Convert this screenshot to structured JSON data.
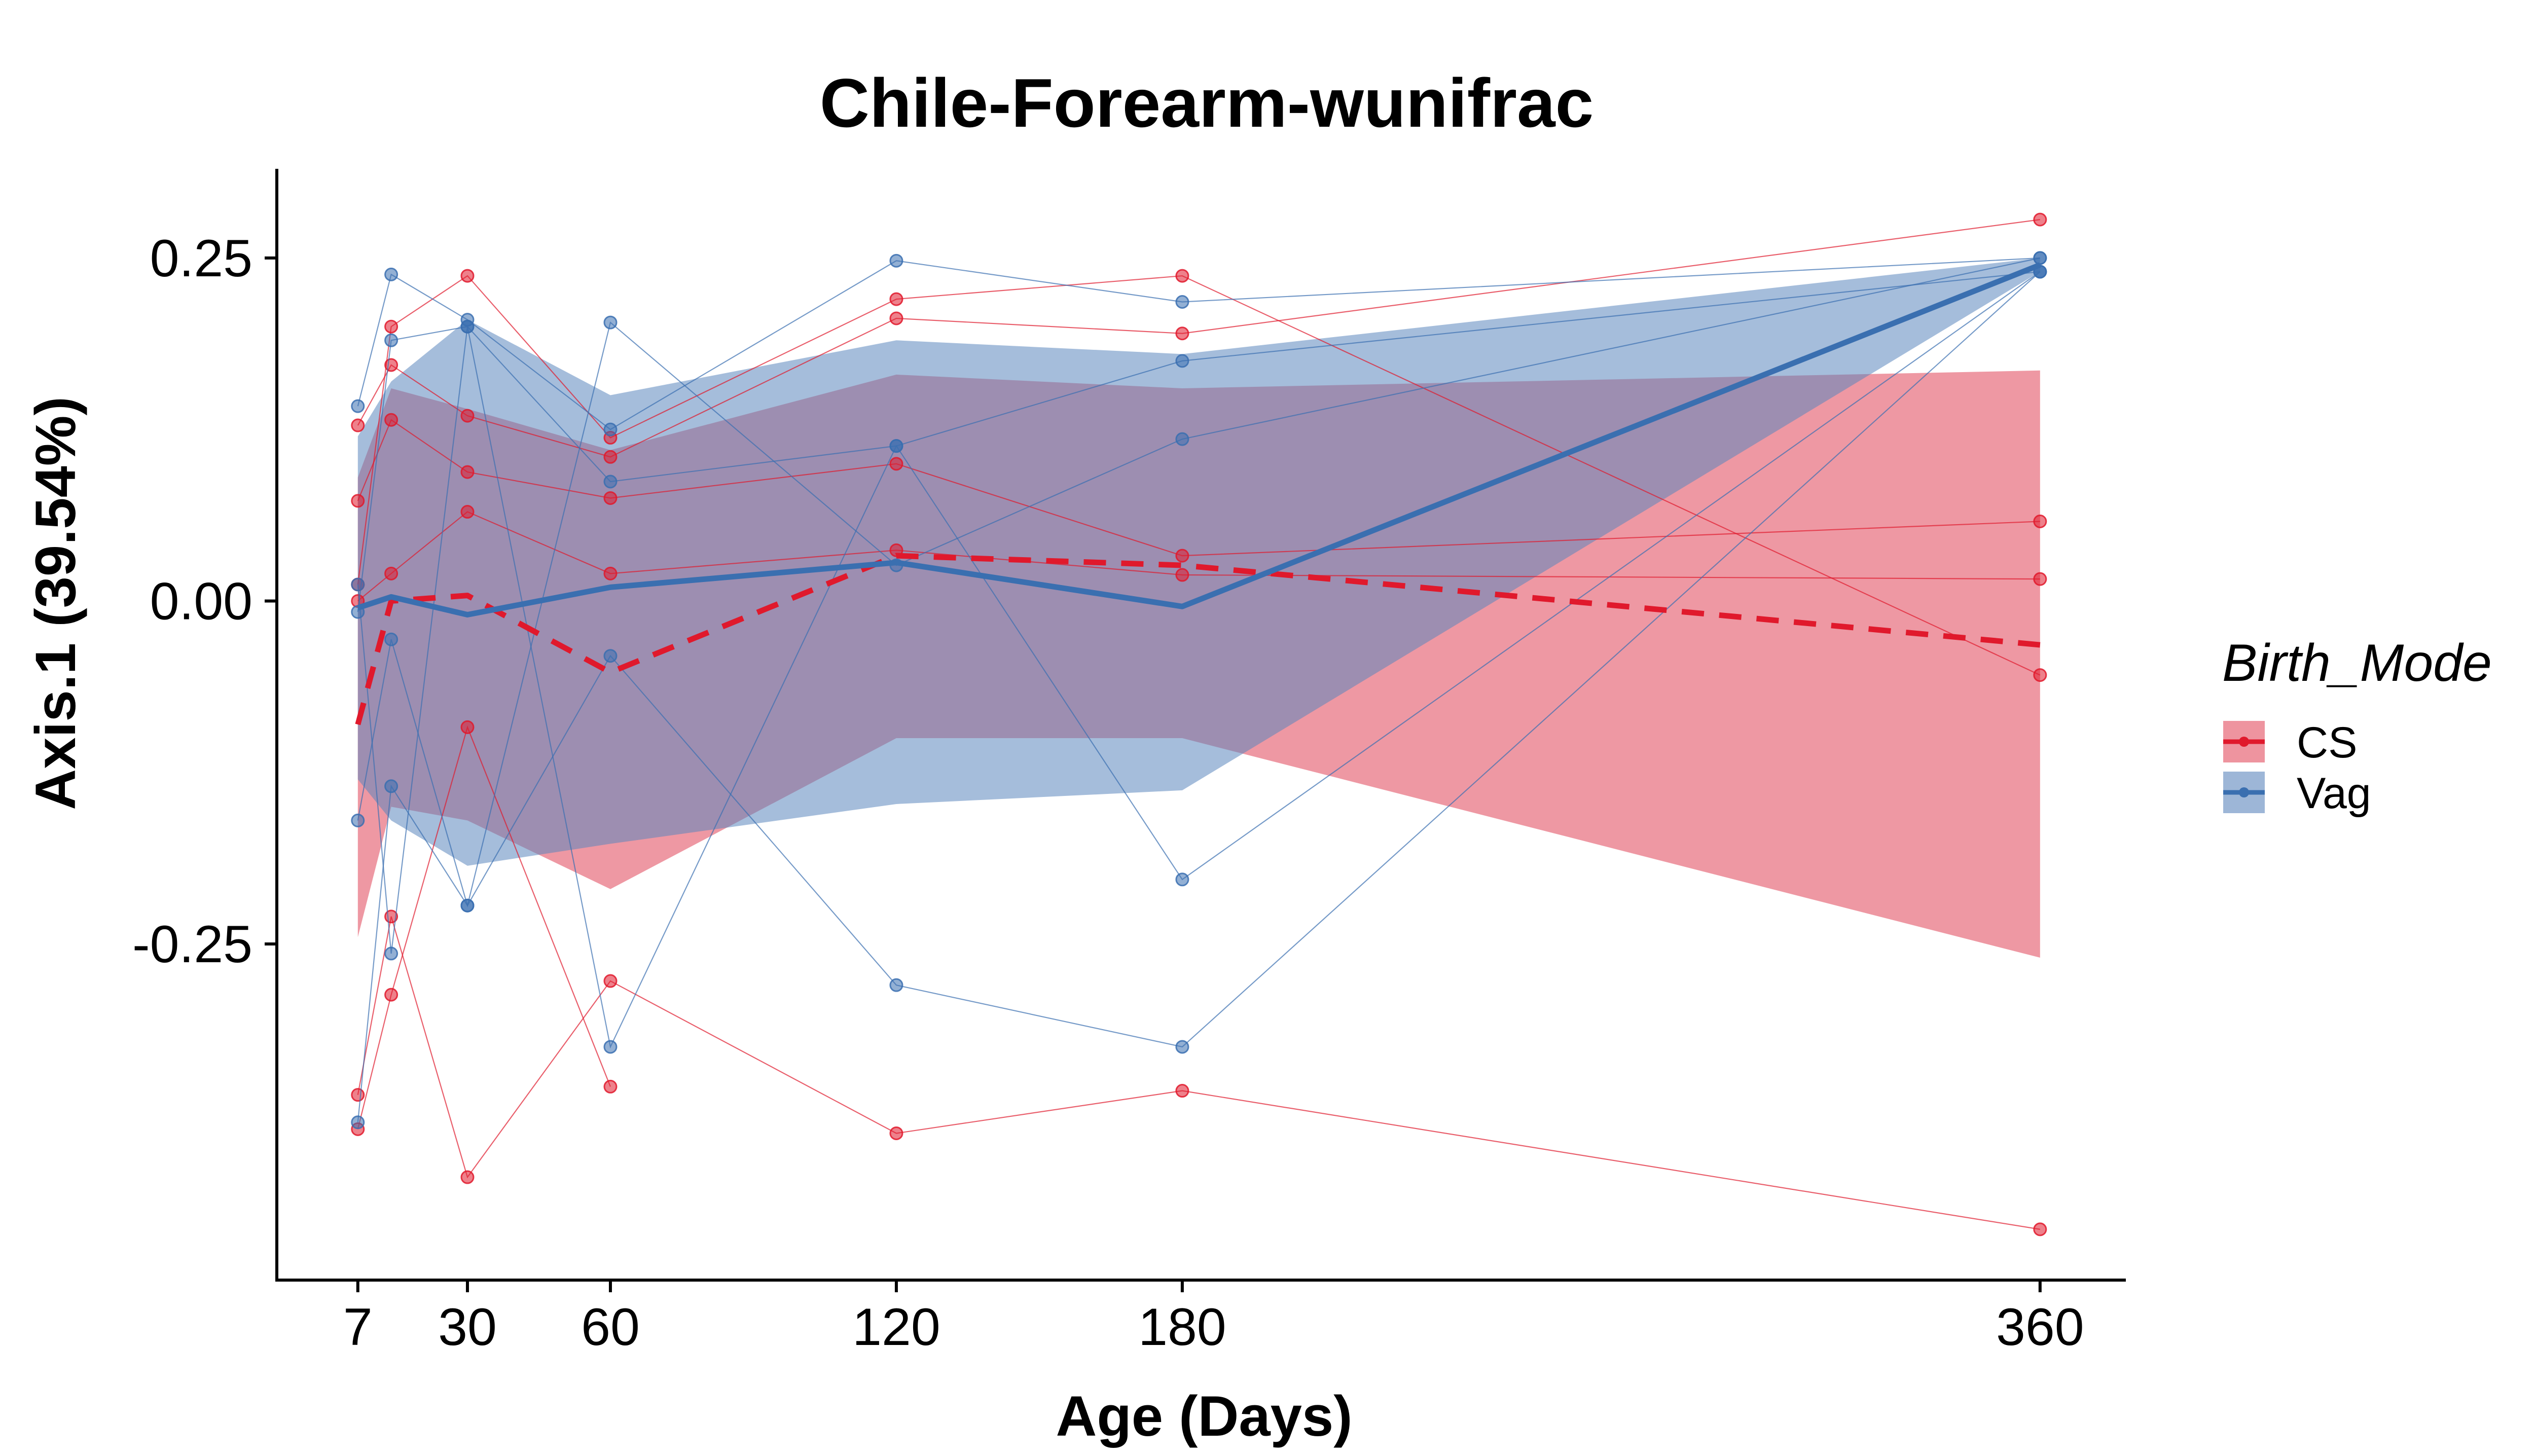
{
  "chart_data": {
    "type": "line",
    "title": "Chile-Forearm-wunifrac",
    "xlabel": "Age (Days)",
    "ylabel": "Axis.1 (39.54%)",
    "x_ticks": [
      7,
      30,
      60,
      120,
      180,
      360
    ],
    "x_tick_labels": [
      "7",
      "30",
      "60",
      "120",
      "180",
      "360"
    ],
    "y_ticks": [
      0.25,
      0.0,
      -0.25
    ],
    "y_tick_labels": [
      "0.25",
      "0.00",
      "-0.25"
    ],
    "xlim": [
      -10,
      378
    ],
    "ylim": [
      -0.495,
      0.315
    ],
    "grid": false,
    "legend": {
      "title": "Birth_Mode",
      "position": "right",
      "entries": [
        "CS",
        "Vag"
      ]
    },
    "colors": {
      "CS": "#e0192c",
      "Vag": "#3a6fb0",
      "CS_band": "#e8707f",
      "Vag_band": "#5b86bd"
    },
    "series": [
      {
        "name": "CS",
        "line_style": "dashed",
        "mean": [
          [
            7,
            -0.09
          ],
          [
            14,
            0.0
          ],
          [
            30,
            0.004
          ],
          [
            60,
            -0.052
          ],
          [
            120,
            0.033
          ],
          [
            180,
            0.026
          ],
          [
            360,
            -0.032
          ]
        ],
        "ribbon_upper": [
          [
            7,
            0.09
          ],
          [
            14,
            0.155
          ],
          [
            30,
            0.14
          ],
          [
            60,
            0.11
          ],
          [
            120,
            0.165
          ],
          [
            180,
            0.155
          ],
          [
            360,
            0.168
          ]
        ],
        "ribbon_lower": [
          [
            7,
            -0.245
          ],
          [
            14,
            -0.15
          ],
          [
            30,
            -0.16
          ],
          [
            60,
            -0.21
          ],
          [
            120,
            -0.1
          ],
          [
            180,
            -0.1
          ],
          [
            360,
            -0.26
          ]
        ],
        "subjects": [
          [
            [
              7,
              0.128
            ],
            [
              14,
              0.172
            ],
            [
              30,
              0.135
            ],
            [
              60,
              0.105
            ],
            [
              120,
              0.206
            ],
            [
              180,
              0.195
            ],
            [
              360,
              0.278
            ]
          ],
          [
            [
              7,
              0.073
            ],
            [
              14,
              0.132
            ],
            [
              30,
              0.094
            ],
            [
              60,
              0.075
            ],
            [
              120,
              0.1
            ],
            [
              180,
              0.033
            ],
            [
              360,
              0.058
            ]
          ],
          [
            [
              7,
              0.012
            ],
            [
              14,
              0.2
            ],
            [
              30,
              0.237
            ],
            [
              60,
              0.119
            ],
            [
              120,
              0.22
            ],
            [
              180,
              0.237
            ],
            [
              360,
              -0.054
            ]
          ],
          [
            [
              7,
              0.0
            ],
            [
              14,
              0.02
            ],
            [
              30,
              0.065
            ],
            [
              60,
              0.02
            ],
            [
              120,
              0.037
            ],
            [
              180,
              0.019
            ],
            [
              360,
              0.016
            ]
          ],
          [
            [
              7,
              -0.36
            ],
            [
              14,
              -0.23
            ],
            [
              30,
              -0.42
            ],
            [
              60,
              -0.277
            ],
            [
              120,
              -0.388
            ],
            [
              180,
              -0.357
            ],
            [
              360,
              -0.458
            ]
          ],
          [
            [
              7,
              -0.385
            ],
            [
              14,
              -0.287
            ],
            [
              30,
              -0.092
            ],
            [
              60,
              -0.354
            ]
          ]
        ]
      },
      {
        "name": "Vag",
        "line_style": "solid",
        "mean": [
          [
            7,
            -0.005
          ],
          [
            14,
            0.003
          ],
          [
            30,
            -0.01
          ],
          [
            60,
            0.01
          ],
          [
            120,
            0.028
          ],
          [
            180,
            -0.004
          ],
          [
            360,
            0.245
          ]
        ],
        "ribbon_upper": [
          [
            7,
            0.12
          ],
          [
            14,
            0.16
          ],
          [
            30,
            0.205
          ],
          [
            60,
            0.15
          ],
          [
            120,
            0.19
          ],
          [
            180,
            0.18
          ],
          [
            360,
            0.25
          ]
        ],
        "ribbon_lower": [
          [
            7,
            -0.13
          ],
          [
            14,
            -0.16
          ],
          [
            30,
            -0.193
          ],
          [
            60,
            -0.177
          ],
          [
            120,
            -0.148
          ],
          [
            180,
            -0.138
          ],
          [
            360,
            0.24
          ]
        ],
        "subjects": [
          [
            [
              7,
              0.142
            ],
            [
              14,
              0.238
            ],
            [
              30,
              0.205
            ],
            [
              60,
              0.125
            ],
            [
              120,
              0.248
            ],
            [
              180,
              0.218
            ],
            [
              360,
              0.25
            ]
          ],
          [
            [
              7,
              -0.008
            ],
            [
              14,
              0.19
            ],
            [
              30,
              0.2
            ],
            [
              60,
              0.087
            ],
            [
              120,
              0.113
            ],
            [
              180,
              0.175
            ],
            [
              360,
              0.24
            ]
          ],
          [
            [
              7,
              -0.16
            ],
            [
              14,
              -0.028
            ],
            [
              30,
              -0.222
            ],
            [
              60,
              0.203
            ],
            [
              120,
              0.026
            ],
            [
              180,
              0.118
            ],
            [
              360,
              0.25
            ]
          ],
          [
            [
              7,
              -0.38
            ],
            [
              14,
              -0.135
            ],
            [
              30,
              -0.222
            ],
            [
              60,
              -0.04
            ],
            [
              120,
              -0.28
            ],
            [
              180,
              -0.325
            ],
            [
              360,
              0.24
            ]
          ],
          [
            [
              7,
              0.012
            ],
            [
              14,
              -0.257
            ],
            [
              30,
              0.2
            ],
            [
              60,
              -0.325
            ],
            [
              120,
              0.113
            ],
            [
              180,
              -0.203
            ],
            [
              360,
              0.24
            ]
          ]
        ]
      }
    ]
  }
}
